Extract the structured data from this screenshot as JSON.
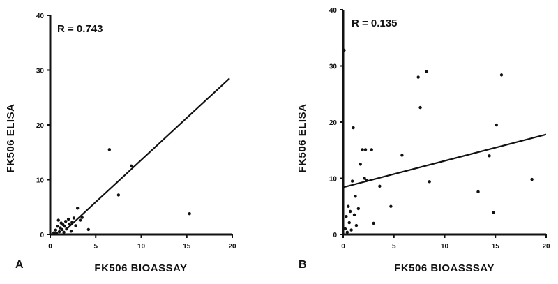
{
  "chart_data": [
    {
      "type": "scatter",
      "panel_label": "A",
      "annotation": "R = 0.743",
      "xlabel": "FK506 BIOASSAY",
      "ylabel": "FK506 ELISA",
      "xlim": [
        0,
        20
      ],
      "ylim": [
        0,
        40
      ],
      "xticks": [
        "0",
        "5",
        "10",
        "15",
        "20"
      ],
      "yticks": [
        "0",
        "10",
        "20",
        "30",
        "40"
      ],
      "grid": false,
      "regression_line": {
        "x": [
          1.8,
          19.7
        ],
        "y": [
          1.0,
          28.5
        ]
      },
      "points": [
        {
          "x": 0.4,
          "y": 0.3
        },
        {
          "x": 0.6,
          "y": 0.8
        },
        {
          "x": 0.7,
          "y": 0.2
        },
        {
          "x": 0.8,
          "y": 1.5
        },
        {
          "x": 0.9,
          "y": 2.6
        },
        {
          "x": 1.0,
          "y": 0.5
        },
        {
          "x": 1.1,
          "y": 1.2
        },
        {
          "x": 1.2,
          "y": 2.1
        },
        {
          "x": 1.3,
          "y": 0.9
        },
        {
          "x": 1.4,
          "y": 1.8
        },
        {
          "x": 1.5,
          "y": 0.4
        },
        {
          "x": 1.6,
          "y": 1.5
        },
        {
          "x": 1.7,
          "y": 2.4
        },
        {
          "x": 1.8,
          "y": 1.0
        },
        {
          "x": 2.0,
          "y": 2.8
        },
        {
          "x": 2.1,
          "y": 1.9
        },
        {
          "x": 2.3,
          "y": 0.6
        },
        {
          "x": 2.4,
          "y": 2.2
        },
        {
          "x": 2.6,
          "y": 3.0
        },
        {
          "x": 2.8,
          "y": 1.6
        },
        {
          "x": 3.0,
          "y": 4.8
        },
        {
          "x": 3.3,
          "y": 2.6
        },
        {
          "x": 3.5,
          "y": 3.1
        },
        {
          "x": 4.2,
          "y": 0.9
        },
        {
          "x": 6.5,
          "y": 15.5
        },
        {
          "x": 7.5,
          "y": 7.2
        },
        {
          "x": 8.9,
          "y": 12.5
        },
        {
          "x": 15.3,
          "y": 3.8
        }
      ]
    },
    {
      "type": "scatter",
      "panel_label": "B",
      "annotation": "R = 0.135",
      "xlabel": "FK506 BIOASSSAY",
      "ylabel": "FK506 ELISA",
      "xlim": [
        0,
        20
      ],
      "ylim": [
        0,
        40
      ],
      "xticks": [
        "0",
        "5",
        "10",
        "15",
        "20"
      ],
      "yticks": [
        "0",
        "10",
        "20",
        "30",
        "40"
      ],
      "grid": false,
      "regression_line": {
        "x": [
          0,
          20
        ],
        "y": [
          8.4,
          17.8
        ]
      },
      "points": [
        {
          "x": 0.1,
          "y": 32.8
        },
        {
          "x": 0.2,
          "y": 1.0
        },
        {
          "x": 0.3,
          "y": 3.2
        },
        {
          "x": 0.4,
          "y": 0.4
        },
        {
          "x": 0.5,
          "y": 5.0
        },
        {
          "x": 0.6,
          "y": 2.1
        },
        {
          "x": 0.7,
          "y": 4.1
        },
        {
          "x": 0.8,
          "y": 0.8
        },
        {
          "x": 0.9,
          "y": 9.5
        },
        {
          "x": 1.0,
          "y": 19.0
        },
        {
          "x": 1.1,
          "y": 3.5
        },
        {
          "x": 1.2,
          "y": 6.8
        },
        {
          "x": 1.3,
          "y": 1.6
        },
        {
          "x": 1.5,
          "y": 4.6
        },
        {
          "x": 1.7,
          "y": 12.5
        },
        {
          "x": 1.9,
          "y": 15.1
        },
        {
          "x": 2.1,
          "y": 10.0
        },
        {
          "x": 2.2,
          "y": 15.1
        },
        {
          "x": 2.3,
          "y": 9.6
        },
        {
          "x": 2.8,
          "y": 15.1
        },
        {
          "x": 3.0,
          "y": 2.0
        },
        {
          "x": 3.6,
          "y": 8.6
        },
        {
          "x": 4.7,
          "y": 5.0
        },
        {
          "x": 5.8,
          "y": 14.1
        },
        {
          "x": 7.4,
          "y": 28.0
        },
        {
          "x": 7.6,
          "y": 22.6
        },
        {
          "x": 8.2,
          "y": 29.0
        },
        {
          "x": 8.5,
          "y": 9.4
        },
        {
          "x": 13.3,
          "y": 7.6
        },
        {
          "x": 14.4,
          "y": 14.0
        },
        {
          "x": 14.8,
          "y": 3.9
        },
        {
          "x": 15.1,
          "y": 19.5
        },
        {
          "x": 15.6,
          "y": 28.4
        },
        {
          "x": 18.6,
          "y": 9.8
        }
      ]
    }
  ]
}
